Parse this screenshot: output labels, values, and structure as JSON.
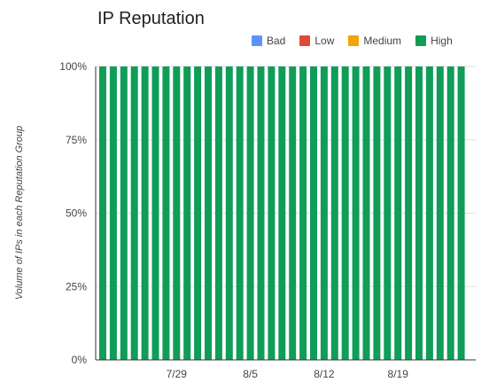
{
  "chart_data": {
    "type": "bar",
    "stacked": true,
    "title": "IP Reputation",
    "ylabel": "Volume of IPs in each Reputation Group",
    "xlabel": "",
    "ylim": [
      0,
      100
    ],
    "y_ticks": [
      "0%",
      "25%",
      "50%",
      "75%",
      "100%"
    ],
    "y_tick_values": [
      0,
      25,
      50,
      75,
      100
    ],
    "x_tick_labels": [
      "7/29",
      "8/5",
      "8/12",
      "8/19"
    ],
    "x_tick_dates": [
      "2019-07-29",
      "2019-08-05",
      "2019-08-12",
      "2019-08-19"
    ],
    "grid": true,
    "legend_position": "top-right",
    "categories": [
      "2019-07-22",
      "2019-07-23",
      "2019-07-24",
      "2019-07-25",
      "2019-07-26",
      "2019-07-27",
      "2019-07-28",
      "2019-07-29",
      "2019-07-30",
      "2019-07-31",
      "2019-08-01",
      "2019-08-02",
      "2019-08-03",
      "2019-08-04",
      "2019-08-05",
      "2019-08-06",
      "2019-08-07",
      "2019-08-08",
      "2019-08-09",
      "2019-08-10",
      "2019-08-11",
      "2019-08-12",
      "2019-08-13",
      "2019-08-14",
      "2019-08-15",
      "2019-08-16",
      "2019-08-17",
      "2019-08-18",
      "2019-08-19",
      "2019-08-20",
      "2019-08-21",
      "2019-08-22",
      "2019-08-23",
      "2019-08-24",
      "2019-08-25"
    ],
    "series": [
      {
        "name": "Bad",
        "color": "#5b95f9",
        "values": [
          0,
          0,
          0,
          0,
          0,
          0,
          0,
          0,
          0,
          0,
          0,
          0,
          0,
          0,
          0,
          0,
          0,
          0,
          0,
          0,
          0,
          0,
          0,
          0,
          0,
          0,
          0,
          0,
          0,
          0,
          0,
          0,
          0,
          0,
          0
        ]
      },
      {
        "name": "Low",
        "color": "#e04a3a",
        "values": [
          0,
          0,
          0,
          0,
          0,
          0,
          0,
          0,
          0,
          0,
          0,
          0,
          0,
          0,
          0,
          0,
          0,
          0,
          0,
          0,
          0,
          0,
          0,
          0,
          0,
          0,
          0,
          0,
          0,
          0,
          0,
          0,
          0,
          0,
          0
        ]
      },
      {
        "name": "Medium",
        "color": "#f4a300",
        "values": [
          0,
          0,
          0,
          0,
          0,
          0,
          0,
          0,
          0,
          0,
          0,
          0,
          0,
          0,
          0,
          0,
          0,
          0,
          0,
          0,
          0,
          0,
          0,
          0,
          0,
          0,
          0,
          0,
          0,
          0,
          0,
          0,
          0,
          0,
          0
        ]
      },
      {
        "name": "High",
        "color": "#0f9d58",
        "values": [
          100,
          100,
          100,
          100,
          100,
          100,
          100,
          100,
          100,
          100,
          100,
          100,
          100,
          100,
          100,
          100,
          100,
          100,
          100,
          100,
          100,
          100,
          100,
          100,
          100,
          100,
          100,
          100,
          100,
          100,
          100,
          100,
          100,
          100,
          100
        ]
      }
    ]
  }
}
